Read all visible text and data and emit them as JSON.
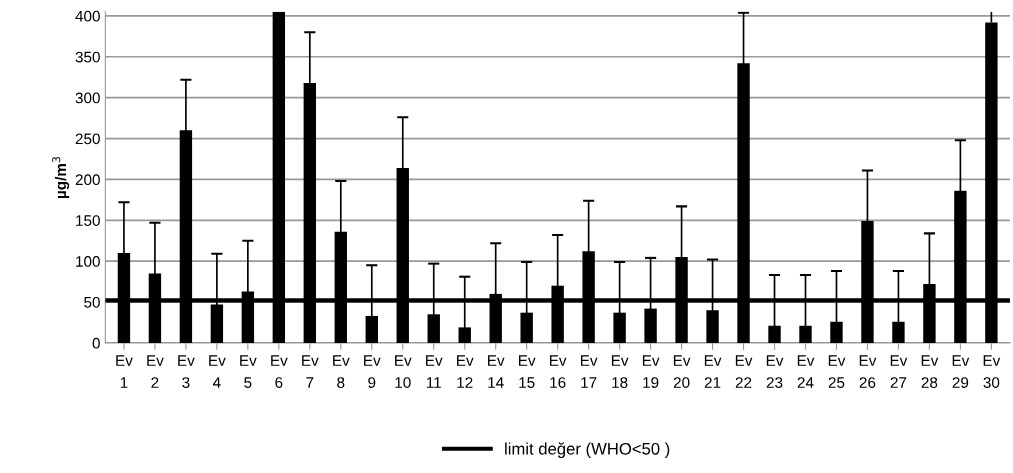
{
  "chart_data": {
    "type": "bar",
    "categories": [
      "Ev\n1",
      "Ev\n2",
      "Ev\n3",
      "Ev\n4",
      "Ev\n5",
      "Ev\n6",
      "Ev\n7",
      "Ev\n8",
      "Ev\n9",
      "Ev\n10",
      "Ev\n11",
      "Ev\n12",
      "Ev\n14",
      "Ev\n15",
      "Ev\n16",
      "Ev\n17",
      "Ev\n18",
      "Ev\n19",
      "Ev\n20",
      "Ev\n21",
      "Ev\n22",
      "Ev\n23",
      "Ev\n24",
      "Ev\n25",
      "Ev\n26",
      "Ev\n27",
      "Ev\n28",
      "Ev\n29",
      "Ev\n30"
    ],
    "values": [
      110,
      85,
      260,
      47,
      63,
      405,
      318,
      136,
      33,
      214,
      35,
      19,
      60,
      37,
      70,
      112,
      37,
      42,
      105,
      40,
      342,
      21,
      21,
      26,
      149,
      26,
      72,
      186,
      392
    ],
    "errors": [
      62,
      62,
      62,
      62,
      62,
      null,
      62,
      62,
      62,
      62,
      62,
      62,
      62,
      62,
      62,
      62,
      62,
      62,
      62,
      62,
      62,
      62,
      62,
      62,
      62,
      62,
      62,
      62,
      [
        392,
        405
      ]
    ],
    "color": "#000000",
    "ylabel": "µg/m$^{3}$",
    "ylim": [
      0,
      405
    ],
    "yticks": [
      0,
      50,
      100,
      150,
      200,
      250,
      300,
      350,
      400
    ],
    "grid": "y",
    "legend": "bottom",
    "ref_lines": [
      {
        "axis": "y",
        "value": 52,
        "label": "limit değer (WHO<50 )",
        "color": "#000000",
        "line_style": "solid"
      }
    ]
  }
}
